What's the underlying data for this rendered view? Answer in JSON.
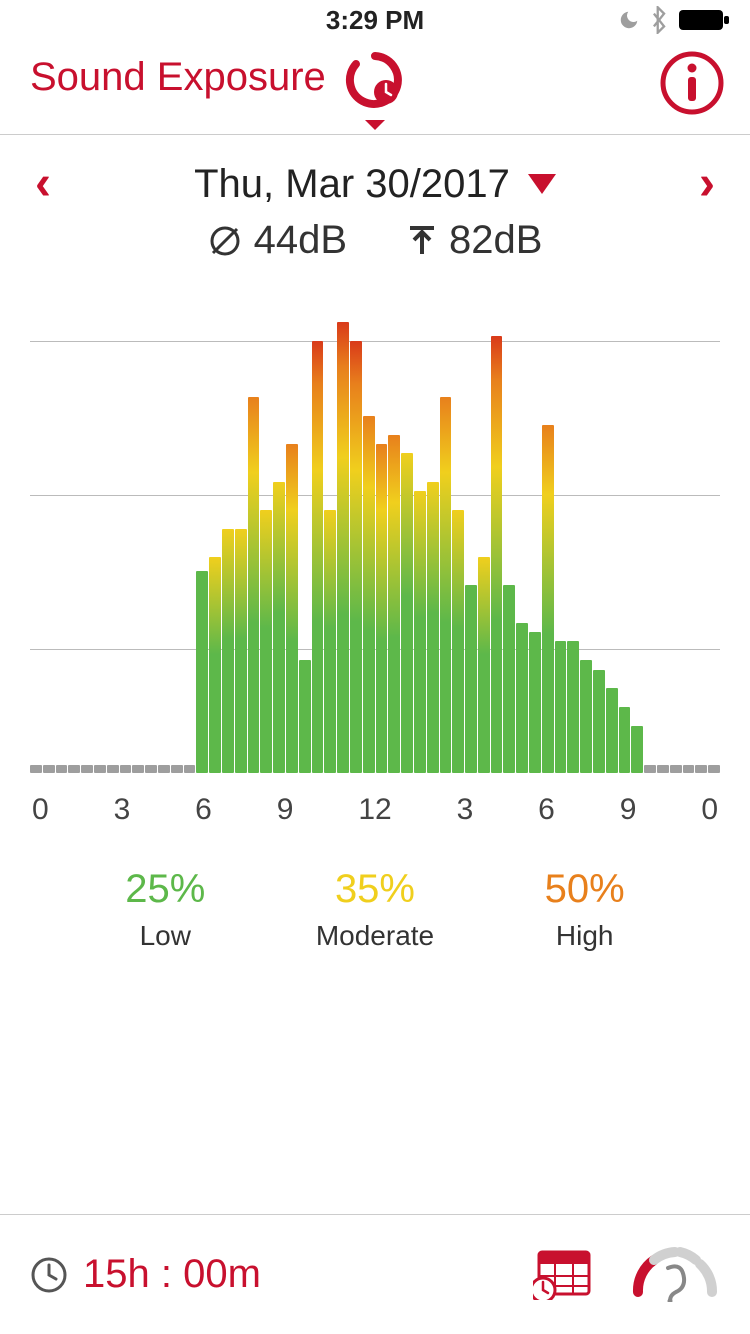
{
  "status": {
    "time": "3:29 PM"
  },
  "header": {
    "title": "Sound Exposure"
  },
  "date": {
    "label": "Thu, Mar 30/2017"
  },
  "stats": {
    "avg": "44dB",
    "peak": "82dB"
  },
  "chart": {
    "type": "bar",
    "ylim": [
      0,
      100
    ],
    "gridlines_pct_from_top": [
      8,
      40,
      72
    ],
    "gradient": {
      "low": "#5db84a",
      "mid": "#f0cf1d",
      "high": "#e8801c",
      "top": "#d93a1a"
    },
    "inactive_color": "#9e9e9e",
    "values": [
      0,
      0,
      0,
      0,
      0,
      0,
      0,
      0,
      0,
      0,
      0,
      0,
      0,
      43,
      46,
      52,
      52,
      80,
      56,
      62,
      70,
      24,
      92,
      56,
      96,
      92,
      76,
      70,
      72,
      68,
      60,
      62,
      80,
      56,
      40,
      46,
      93,
      40,
      32,
      30,
      74,
      28,
      28,
      24,
      22,
      18,
      14,
      10,
      0,
      0,
      0,
      0,
      0,
      0
    ],
    "xlabels": [
      "0",
      "3",
      "6",
      "9",
      "12",
      "3",
      "6",
      "9",
      "0"
    ]
  },
  "legend": {
    "items": [
      {
        "pct": "25%",
        "label": "Low",
        "color": "#5db84a"
      },
      {
        "pct": "35%",
        "label": "Moderate",
        "color": "#f0cf1d"
      },
      {
        "pct": "50%",
        "label": "High",
        "color": "#e8801c"
      }
    ]
  },
  "footer": {
    "duration": "15h : 00m"
  },
  "colors": {
    "brand": "#c8102e",
    "text": "#222222",
    "divider": "#cccccc"
  }
}
